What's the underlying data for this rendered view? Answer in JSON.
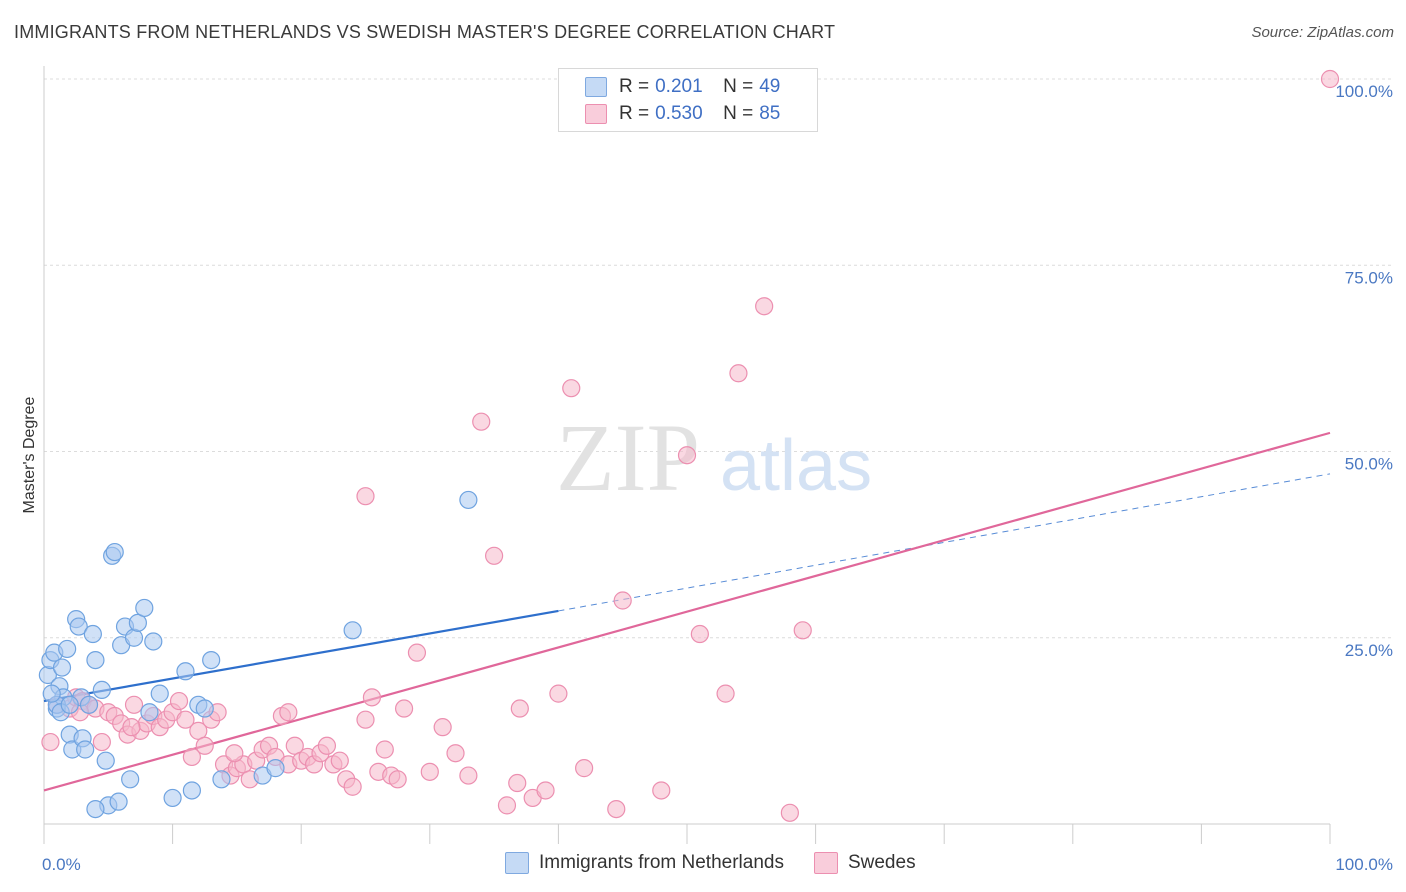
{
  "title": "IMMIGRANTS FROM NETHERLANDS VS SWEDISH MASTER'S DEGREE CORRELATION CHART",
  "source": "Source: ZipAtlas.com",
  "watermark": {
    "zip": "ZIP",
    "atlas": "atlas"
  },
  "legend": {
    "rows": [
      {
        "r_label": "R =",
        "r_value": "0.201",
        "n_label": "N =",
        "n_value": "49",
        "color": "#a9c8f0"
      },
      {
        "r_label": "R =",
        "r_value": "0.530",
        "n_label": "N =",
        "n_value": "85",
        "color": "#f6b8cb"
      }
    ]
  },
  "bottom_legend": [
    {
      "label": "Immigrants from Netherlands",
      "color": "#a9c8f0"
    },
    {
      "label": "Swedes",
      "color": "#f6b8cb"
    }
  ],
  "chart_data": {
    "type": "scatter",
    "title": "IMMIGRANTS FROM NETHERLANDS VS SWEDISH MASTER'S DEGREE CORRELATION CHART",
    "xlabel": "",
    "ylabel": "Master's Degree",
    "xlim": [
      0,
      100
    ],
    "ylim": [
      0,
      100
    ],
    "x_tick_labels": [
      "0.0%",
      "100.0%"
    ],
    "y_ticks": [
      25,
      50,
      75,
      100
    ],
    "y_tick_labels": [
      "25.0%",
      "50.0%",
      "75.0%",
      "100.0%"
    ],
    "grid": true,
    "series": [
      {
        "name": "Immigrants from Netherlands",
        "color": "#6fa3e0",
        "fill": "#a9c8f0",
        "trend": {
          "x0": 0,
          "y0": 16.5,
          "x1": 40,
          "y1": 28.6,
          "dash_to_x": 100,
          "dash_to_y": 47.0,
          "color": "#2e6fcc"
        },
        "points": [
          [
            0.3,
            20.0
          ],
          [
            0.5,
            22.0
          ],
          [
            0.8,
            23.0
          ],
          [
            1.0,
            15.5
          ],
          [
            1.2,
            18.5
          ],
          [
            1.4,
            21.0
          ],
          [
            1.5,
            17.0
          ],
          [
            1.8,
            23.5
          ],
          [
            2.0,
            12.0
          ],
          [
            2.2,
            10.0
          ],
          [
            2.5,
            27.5
          ],
          [
            2.7,
            26.5
          ],
          [
            2.9,
            17.0
          ],
          [
            3.0,
            11.5
          ],
          [
            3.2,
            10.0
          ],
          [
            3.5,
            16.0
          ],
          [
            3.8,
            25.5
          ],
          [
            4.0,
            22.0
          ],
          [
            4.5,
            18.0
          ],
          [
            4.8,
            8.5
          ],
          [
            5.0,
            2.5
          ],
          [
            5.3,
            36.0
          ],
          [
            5.5,
            36.5
          ],
          [
            5.8,
            3.0
          ],
          [
            6.0,
            24.0
          ],
          [
            6.3,
            26.5
          ],
          [
            6.7,
            6.0
          ],
          [
            7.0,
            25.0
          ],
          [
            7.3,
            27.0
          ],
          [
            7.8,
            29.0
          ],
          [
            8.2,
            15.0
          ],
          [
            8.5,
            24.5
          ],
          [
            9.0,
            17.5
          ],
          [
            10.0,
            3.5
          ],
          [
            11.0,
            20.5
          ],
          [
            11.5,
            4.5
          ],
          [
            12.0,
            16.0
          ],
          [
            12.5,
            15.5
          ],
          [
            13.0,
            22.0
          ],
          [
            13.8,
            6.0
          ],
          [
            17.0,
            6.5
          ],
          [
            18.0,
            7.5
          ],
          [
            24.0,
            26.0
          ],
          [
            33.0,
            43.5
          ],
          [
            1.0,
            16.0
          ],
          [
            1.3,
            15.0
          ],
          [
            0.6,
            17.5
          ],
          [
            2.0,
            16.0
          ],
          [
            4.0,
            2.0
          ]
        ]
      },
      {
        "name": "Swedes",
        "color": "#ec8fb0",
        "fill": "#f6b8cb",
        "trend": {
          "x0": 0,
          "y0": 4.5,
          "x1": 100,
          "y1": 52.5,
          "color": "#e0679a"
        },
        "points": [
          [
            0.5,
            11.0
          ],
          [
            1.0,
            16.0
          ],
          [
            2.0,
            15.5
          ],
          [
            2.5,
            17.0
          ],
          [
            3.0,
            16.5
          ],
          [
            3.5,
            16.0
          ],
          [
            4.0,
            15.5
          ],
          [
            5.0,
            15.0
          ],
          [
            5.5,
            14.5
          ],
          [
            6.0,
            13.5
          ],
          [
            6.5,
            12.0
          ],
          [
            7.0,
            16.0
          ],
          [
            7.5,
            12.5
          ],
          [
            8.0,
            13.5
          ],
          [
            8.5,
            14.5
          ],
          [
            9.0,
            13.0
          ],
          [
            9.5,
            14.0
          ],
          [
            10.0,
            15.0
          ],
          [
            10.5,
            16.5
          ],
          [
            11.0,
            14.0
          ],
          [
            11.5,
            9.0
          ],
          [
            12.0,
            12.5
          ],
          [
            12.5,
            10.5
          ],
          [
            13.0,
            14.0
          ],
          [
            13.5,
            15.0
          ],
          [
            14.0,
            8.0
          ],
          [
            14.5,
            6.5
          ],
          [
            15.0,
            7.5
          ],
          [
            15.5,
            8.0
          ],
          [
            16.0,
            6.0
          ],
          [
            16.5,
            8.5
          ],
          [
            17.0,
            10.0
          ],
          [
            17.5,
            10.5
          ],
          [
            18.0,
            9.0
          ],
          [
            18.5,
            14.5
          ],
          [
            19.0,
            8.0
          ],
          [
            19.5,
            10.5
          ],
          [
            20.0,
            8.5
          ],
          [
            20.5,
            9.0
          ],
          [
            21.0,
            8.0
          ],
          [
            21.5,
            9.5
          ],
          [
            22.0,
            10.5
          ],
          [
            22.5,
            8.0
          ],
          [
            23.0,
            8.5
          ],
          [
            23.5,
            6.0
          ],
          [
            24.0,
            5.0
          ],
          [
            25.0,
            14.0
          ],
          [
            25.5,
            17.0
          ],
          [
            26.0,
            7.0
          ],
          [
            26.5,
            10.0
          ],
          [
            27.0,
            6.5
          ],
          [
            28.0,
            15.5
          ],
          [
            29.0,
            23.0
          ],
          [
            30.0,
            7.0
          ],
          [
            31.0,
            13.0
          ],
          [
            32.0,
            9.5
          ],
          [
            33.0,
            6.5
          ],
          [
            34.0,
            54.0
          ],
          [
            35.0,
            36.0
          ],
          [
            36.0,
            2.5
          ],
          [
            37.0,
            15.5
          ],
          [
            38.0,
            3.5
          ],
          [
            39.0,
            4.5
          ],
          [
            40.0,
            17.5
          ],
          [
            41.0,
            58.5
          ],
          [
            42.0,
            7.5
          ],
          [
            45.0,
            30.0
          ],
          [
            48.0,
            4.5
          ],
          [
            50.0,
            49.5
          ],
          [
            51.0,
            25.5
          ],
          [
            53.0,
            17.5
          ],
          [
            54.0,
            60.5
          ],
          [
            56.0,
            69.5
          ],
          [
            59.0,
            26.0
          ],
          [
            58.0,
            1.5
          ],
          [
            100.0,
            100.0
          ],
          [
            25.0,
            44.0
          ],
          [
            19.0,
            15.0
          ],
          [
            4.5,
            11.0
          ],
          [
            2.8,
            15.0
          ],
          [
            6.8,
            13.0
          ],
          [
            14.8,
            9.5
          ],
          [
            27.5,
            6.0
          ],
          [
            36.8,
            5.5
          ],
          [
            44.5,
            2.0
          ]
        ]
      }
    ]
  }
}
